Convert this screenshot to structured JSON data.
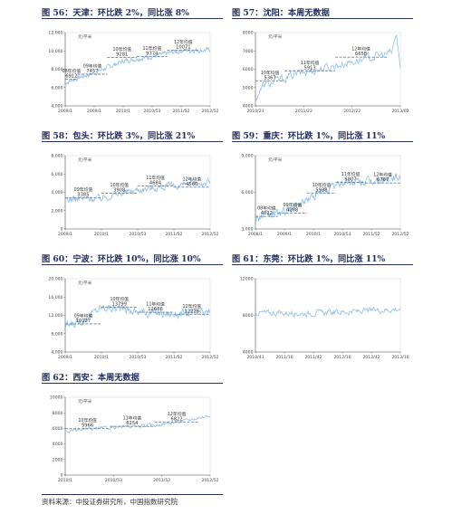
{
  "source": "资料来源：中投证券研究所，中国指数研究院",
  "chart_data": [
    {
      "id": "p56",
      "type": "line",
      "title": "图 56：天津：环比跌 2%，同比涨 8%",
      "unit": "元/平米",
      "ylim": [
        4000,
        12000
      ],
      "yticks": [
        "4,000",
        "6,000",
        "8,000",
        "10,000",
        "12,000"
      ],
      "xticks": [
        "2009/1",
        "2009/1",
        "2010/1",
        "2010/53",
        "2011/52",
        "2012/52"
      ],
      "n": 260,
      "base": [
        [
          0,
          6500
        ],
        [
          20,
          7000
        ],
        [
          52,
          7600
        ],
        [
          104,
          8900
        ],
        [
          156,
          9400
        ],
        [
          210,
          10050
        ],
        [
          259,
          10100
        ]
      ],
      "noise": 420,
      "averages": [
        {
          "label": "08年均值",
          "value": 6912,
          "text": "6912",
          "start": 0,
          "end": 22
        },
        {
          "label": "09年均值",
          "value": 7457,
          "text": "7457",
          "start": 22,
          "end": 75
        },
        {
          "label": "10年均值",
          "value": 9281,
          "text": "9281",
          "start": 75,
          "end": 128
        },
        {
          "label": "11年均值",
          "value": 9374,
          "text": "9374",
          "start": 128,
          "end": 182
        },
        {
          "label": "12年均值",
          "value": 10071,
          "text": "10071",
          "start": 182,
          "end": 240
        }
      ]
    },
    {
      "id": "p57",
      "type": "line",
      "title": "图 57：沈阳：本周无数据",
      "unit": "元/平米",
      "ylim": [
        4000,
        8000
      ],
      "yticks": [
        "4000",
        "5000",
        "6000",
        "7000",
        "8000"
      ],
      "xticks": [
        "2010/23",
        "2011/22",
        "2012/22",
        "2013/02"
      ],
      "n": 150,
      "base": [
        [
          0,
          4400
        ],
        [
          8,
          5100
        ],
        [
          40,
          5700
        ],
        [
          90,
          6300
        ],
        [
          140,
          6900
        ],
        [
          145,
          7900
        ],
        [
          149,
          6100
        ]
      ],
      "noise": 380,
      "averages": [
        {
          "label": "10年均值",
          "value": 5367,
          "text": "5367",
          "start": 0,
          "end": 30
        },
        {
          "label": "11年均值",
          "value": 5913,
          "text": "5913",
          "start": 30,
          "end": 82
        },
        {
          "label": "12年均值",
          "value": 6658,
          "text": "6658",
          "start": 82,
          "end": 135
        }
      ]
    },
    {
      "id": "p58",
      "type": "line",
      "title": "图 58：包头：环比跌 3%，同比涨 21%",
      "unit": "元/平米",
      "ylim": [
        0,
        8000
      ],
      "yticks": [
        "0",
        "2,000",
        "4,000",
        "6,000",
        "8,000"
      ],
      "xticks": [
        "2009/1",
        "2010/1",
        "2010/53",
        "2011/52",
        "2012/52"
      ],
      "n": 210,
      "base": [
        [
          0,
          3200
        ],
        [
          52,
          3400
        ],
        [
          104,
          4300
        ],
        [
          156,
          4700
        ],
        [
          209,
          5100
        ]
      ],
      "noise": 600,
      "averages": [
        {
          "label": "09年均值",
          "value": 3385,
          "text": "3385",
          "start": 0,
          "end": 52
        },
        {
          "label": "10年均值",
          "value": 3908,
          "text": "3908",
          "start": 52,
          "end": 104
        },
        {
          "label": "11年均值",
          "value": 4684,
          "text": "4684",
          "start": 104,
          "end": 156
        },
        {
          "label": "12年均值",
          "value": 4560,
          "text": "4560",
          "start": 156,
          "end": 209
        }
      ]
    },
    {
      "id": "p59",
      "type": "line",
      "title": "图 59：重庆：环比跌 1%，同比涨 11%",
      "unit": "元/平米",
      "ylim": [
        3000,
        9000
      ],
      "yticks": [
        "3,000",
        "6,000",
        "9,000"
      ],
      "xticks": [
        "2008/1",
        "2009/1",
        "2010/1",
        "2010/53",
        "2011/52",
        "2012/52"
      ],
      "n": 260,
      "base": [
        [
          0,
          3900
        ],
        [
          52,
          4400
        ],
        [
          104,
          5700
        ],
        [
          156,
          6800
        ],
        [
          208,
          6900
        ],
        [
          259,
          7200
        ]
      ],
      "noise": 520,
      "averages": [
        {
          "label": "08年均值",
          "value": 4022,
          "text": "4022",
          "start": 0,
          "end": 40
        },
        {
          "label": "09年均值",
          "value": 4288,
          "text": "4288",
          "start": 40,
          "end": 92
        },
        {
          "label": "10年均值",
          "value": 5938,
          "text": "5938",
          "start": 92,
          "end": 144
        },
        {
          "label": "11年均值",
          "value": 6807,
          "text": "6807",
          "start": 144,
          "end": 196
        },
        {
          "label": "12年均值",
          "value": 6767,
          "text": "6767",
          "start": 196,
          "end": 259
        }
      ]
    },
    {
      "id": "p60",
      "type": "line",
      "title": "图 60：宁波：环比跌 10%，同比涨 10%",
      "unit": "元/平米",
      "ylim": [
        4000,
        20000
      ],
      "yticks": [
        "4,000",
        "8,000",
        "12,000",
        "16,000",
        "20,000"
      ],
      "xticks": [
        "2009/1",
        "2010/1",
        "2010/53",
        "2011/52",
        "2012/52"
      ],
      "n": 210,
      "base": [
        [
          0,
          9500
        ],
        [
          20,
          10500
        ],
        [
          52,
          13800
        ],
        [
          80,
          13500
        ],
        [
          104,
          12800
        ],
        [
          156,
          12300
        ],
        [
          209,
          12600
        ]
      ],
      "noise": 1500,
      "averages": [
        {
          "label": "09年均值",
          "value": 10127,
          "text": "10127",
          "start": 0,
          "end": 52
        },
        {
          "label": "10年均值",
          "value": 13799,
          "text": "13799",
          "start": 52,
          "end": 104
        },
        {
          "label": "11年均值",
          "value": 12686,
          "text": "12686",
          "start": 104,
          "end": 156
        },
        {
          "label": "12年均值",
          "value": 12226,
          "text": "12226",
          "start": 156,
          "end": 209
        }
      ]
    },
    {
      "id": "p61",
      "type": "line",
      "title": "图 61：东莞：环比跌 1%，同比涨 11%",
      "unit": "",
      "ylim": [
        4000,
        12000
      ],
      "yticks": [
        "4000",
        "8000",
        "12000"
      ],
      "xticks": [
        "2010/43",
        "2011/16",
        "2011/42",
        "2012/16",
        "2012/42",
        "2013/16"
      ],
      "n": 180,
      "base": [
        [
          0,
          8300
        ],
        [
          60,
          8200
        ],
        [
          120,
          8400
        ],
        [
          179,
          8700
        ]
      ],
      "noise": 500,
      "averages": []
    },
    {
      "id": "p62",
      "type": "line",
      "title": "图 62：西安：本周无数据",
      "unit": "元/平米",
      "ylim": [
        0,
        10000
      ],
      "yticks": [
        "0",
        "2000",
        "4000",
        "6000",
        "8000",
        "10000"
      ],
      "xticks": [
        "2010/1",
        "2010/53",
        "2011/52",
        "2012/52"
      ],
      "n": 170,
      "base": [
        [
          0,
          5600
        ],
        [
          52,
          6100
        ],
        [
          104,
          6400
        ],
        [
          140,
          7000
        ],
        [
          169,
          7700
        ]
      ],
      "noise": 350,
      "averages": [
        {
          "label": "10年均值",
          "value": 5966,
          "text": "5966",
          "start": 0,
          "end": 52
        },
        {
          "label": "11年均值",
          "value": 6254,
          "text": "6254",
          "start": 52,
          "end": 104
        },
        {
          "label": "12年均值",
          "value": 6822,
          "text": "6822",
          "start": 104,
          "end": 156
        }
      ]
    }
  ]
}
